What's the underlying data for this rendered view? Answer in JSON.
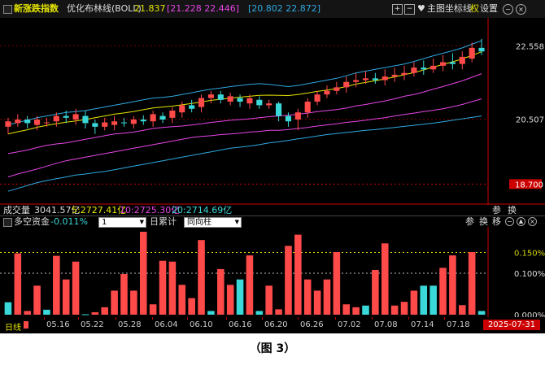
{
  "main_panel": {
    "title": "新涨跌指数",
    "indicator_name": "优化布林线(BOLL)",
    "mid_value": "21.837",
    "upper_pair": "[21.228 22.446]",
    "lower_pair": "[20.802 22.872]",
    "toolbar": {
      "chart_label": "主图",
      "axis_label": "坐标线",
      "rights_label": "权",
      "settings_label": "设置"
    },
    "y_labels": [
      "22.558",
      "20.507"
    ],
    "current_price": "18.700"
  },
  "volume_panel": {
    "label": "成交量",
    "total": "3041.57亿",
    "ma5": "5:2727.41亿",
    "ma10": "10:2725.30亿",
    "ma20": "20:2714.69亿",
    "params_label": "参",
    "switch_label": "换"
  },
  "long_short_panel": {
    "label": "多空资金",
    "value": "-0.011%",
    "select_value": "1",
    "cumulative_label": "日累计",
    "direction_select": "同向柱",
    "params_label": "参",
    "switch_label": "换",
    "move_label": "移",
    "y_labels": [
      "0.150%",
      "0.100%",
      "0.000%"
    ]
  },
  "date_axis": {
    "period_label": "日线",
    "dates": [
      "05.16",
      "05.22",
      "05.28",
      "06.04",
      "06.10",
      "06.16",
      "06.20",
      "06.26",
      "07.02",
      "07.08",
      "07.14",
      "07.18"
    ],
    "current_date": "2025-07-31"
  },
  "caption": "（图 3）",
  "colors": {
    "up": "#ff4a4a",
    "down": "#3ad8d8",
    "boll_mid": "#e6e600",
    "boll_upper": "#e645e6",
    "boll_lower": "#2fa8e0"
  },
  "chart_data": {
    "type": "bar",
    "title": "多空资金",
    "ylim": [
      0,
      0.2
    ],
    "values": [
      0.03,
      0.148,
      0.009,
      0.07,
      0.012,
      0.142,
      0.085,
      0.128,
      0.001,
      0.006,
      0.018,
      0.058,
      0.098,
      0.058,
      0.2,
      0.025,
      0.13,
      0.128,
      0.072,
      0.04,
      0.18,
      0.009,
      0.11,
      0.072,
      0.085,
      0.143,
      0.009,
      0.07,
      0.013,
      0.166,
      0.193,
      0.085,
      0.058,
      0.085,
      0.151,
      0.025,
      0.018,
      0.022,
      0.108,
      0.172,
      0.022,
      0.031,
      0.058,
      0.07,
      0.07,
      0.113,
      0.143,
      0.023,
      0.151,
      0.009
    ],
    "colors": [
      "down",
      "up",
      "up",
      "up",
      "down",
      "up",
      "up",
      "up",
      "down",
      "up",
      "up",
      "up",
      "up",
      "up",
      "up",
      "up",
      "up",
      "up",
      "up",
      "up",
      "up",
      "down",
      "up",
      "up",
      "down",
      "up",
      "down",
      "up",
      "up",
      "up",
      "up",
      "up",
      "up",
      "up",
      "up",
      "up",
      "up",
      "down",
      "up",
      "up",
      "up",
      "up",
      "up",
      "down",
      "down",
      "up",
      "up",
      "up",
      "up",
      "down"
    ],
    "reference_lines": [
      0.15,
      0.1
    ]
  },
  "price_chart": {
    "type": "candlestick",
    "ylim": [
      18.3,
      23.2
    ],
    "candles": [
      [
        20.3,
        20.45,
        20.1,
        20.55
      ],
      [
        20.4,
        20.5,
        20.3,
        20.65
      ],
      [
        20.5,
        20.4,
        20.25,
        20.6
      ],
      [
        20.35,
        20.5,
        20.2,
        20.6
      ],
      [
        20.4,
        20.42,
        20.3,
        20.55
      ],
      [
        20.45,
        20.6,
        20.3,
        20.7
      ],
      [
        20.6,
        20.55,
        20.4,
        20.75
      ],
      [
        20.5,
        20.65,
        20.35,
        20.8
      ],
      [
        20.6,
        20.4,
        20.25,
        20.75
      ],
      [
        20.4,
        20.3,
        20.1,
        20.5
      ],
      [
        20.3,
        20.42,
        20.2,
        20.55
      ],
      [
        20.35,
        20.45,
        20.2,
        20.6
      ],
      [
        20.42,
        20.4,
        20.3,
        20.55
      ],
      [
        20.38,
        20.5,
        20.25,
        20.6
      ],
      [
        20.5,
        20.45,
        20.35,
        20.62
      ],
      [
        20.45,
        20.65,
        20.3,
        20.75
      ],
      [
        20.6,
        20.5,
        20.4,
        20.7
      ],
      [
        20.55,
        20.75,
        20.4,
        20.85
      ],
      [
        20.7,
        20.9,
        20.55,
        21.0
      ],
      [
        20.9,
        20.8,
        20.7,
        21.05
      ],
      [
        20.85,
        21.1,
        20.7,
        21.2
      ],
      [
        21.1,
        21.2,
        20.95,
        21.3
      ],
      [
        21.2,
        21.05,
        20.95,
        21.3
      ],
      [
        21.0,
        21.15,
        20.9,
        21.25
      ],
      [
        21.1,
        21.0,
        20.85,
        21.2
      ],
      [
        20.95,
        21.1,
        20.8,
        21.2
      ],
      [
        21.05,
        20.9,
        20.8,
        21.15
      ],
      [
        20.9,
        20.95,
        20.8,
        21.05
      ],
      [
        20.95,
        20.6,
        20.45,
        21.0
      ],
      [
        20.6,
        20.45,
        20.3,
        20.7
      ],
      [
        20.5,
        20.7,
        20.2,
        20.8
      ],
      [
        20.7,
        21.0,
        20.55,
        21.1
      ],
      [
        21.0,
        21.2,
        20.9,
        21.3
      ],
      [
        21.2,
        21.3,
        21.1,
        21.45
      ],
      [
        21.3,
        21.4,
        21.2,
        21.55
      ],
      [
        21.4,
        21.55,
        21.25,
        21.7
      ],
      [
        21.55,
        21.6,
        21.4,
        21.8
      ],
      [
        21.6,
        21.65,
        21.5,
        21.85
      ],
      [
        21.65,
        21.6,
        21.5,
        21.8
      ],
      [
        21.6,
        21.7,
        21.45,
        21.9
      ],
      [
        21.7,
        21.75,
        21.55,
        21.95
      ],
      [
        21.75,
        21.8,
        21.6,
        22.0
      ],
      [
        21.8,
        21.95,
        21.7,
        22.1
      ],
      [
        21.95,
        21.9,
        21.75,
        22.15
      ],
      [
        21.9,
        22.0,
        21.8,
        22.2
      ],
      [
        22.0,
        22.1,
        21.85,
        22.3
      ],
      [
        22.1,
        22.05,
        21.9,
        22.35
      ],
      [
        22.05,
        22.25,
        21.9,
        22.4
      ],
      [
        22.2,
        22.5,
        22.1,
        22.65
      ],
      [
        22.5,
        22.4,
        22.3,
        22.75
      ]
    ],
    "boll_mid": [
      19.55,
      19.6,
      19.65,
      19.72,
      19.78,
      19.82,
      19.85,
      19.9,
      19.95,
      20.0,
      20.05,
      20.1,
      20.12,
      20.15,
      20.2,
      20.25,
      20.28,
      20.3,
      20.32,
      20.35,
      20.38,
      20.42,
      20.45,
      20.48,
      20.5,
      20.52,
      20.55,
      20.58,
      20.6,
      20.62,
      20.65,
      20.68,
      20.72,
      20.75,
      20.78,
      20.82,
      20.88,
      20.92,
      20.97,
      21.02,
      21.08,
      21.15,
      21.2,
      21.27,
      21.35,
      21.42,
      21.5,
      21.58,
      21.68,
      21.78
    ],
    "boll_upper": [
      20.35,
      20.42,
      20.48,
      20.55,
      20.6,
      20.65,
      20.7,
      20.72,
      20.75,
      20.8,
      20.85,
      20.9,
      20.95,
      21.0,
      21.05,
      21.1,
      21.12,
      21.15,
      21.2,
      21.25,
      21.3,
      21.35,
      21.38,
      21.42,
      21.45,
      21.48,
      21.5,
      21.48,
      21.45,
      21.42,
      21.45,
      21.5,
      21.55,
      21.6,
      21.65,
      21.72,
      21.8,
      21.85,
      21.9,
      21.95,
      22.0,
      22.05,
      22.12,
      22.2,
      22.28,
      22.35,
      22.42,
      22.5,
      22.6,
      22.7
    ],
    "boll_lower": [
      18.9,
      18.98,
      19.05,
      19.12,
      19.2,
      19.28,
      19.35,
      19.4,
      19.45,
      19.5,
      19.55,
      19.6,
      19.65,
      19.7,
      19.75,
      19.8,
      19.85,
      19.9,
      19.95,
      20.0,
      20.03,
      20.05,
      20.08,
      20.1,
      20.12,
      20.15,
      20.17,
      20.2,
      20.2,
      20.22,
      20.25,
      20.28,
      20.32,
      20.35,
      20.38,
      20.42,
      20.45,
      20.48,
      20.52,
      20.55,
      20.6,
      20.64,
      20.68,
      20.72,
      20.76,
      20.8,
      20.86,
      20.92,
      21.0,
      21.08
    ],
    "boll_far_lower": [
      18.5,
      18.58,
      18.66,
      18.74,
      18.8,
      18.85,
      18.9,
      18.95,
      18.98,
      19.02,
      19.05,
      19.1,
      19.15,
      19.2,
      19.25,
      19.3,
      19.35,
      19.4,
      19.45,
      19.5,
      19.55,
      19.6,
      19.65,
      19.7,
      19.73,
      19.76,
      19.8,
      19.85,
      19.88,
      19.92,
      19.96,
      20.0,
      20.04,
      20.08,
      20.11,
      20.14,
      20.17,
      20.2,
      20.22,
      20.25,
      20.28,
      20.31,
      20.34,
      20.37,
      20.4,
      20.44,
      20.48,
      20.52,
      20.56,
      20.6
    ]
  }
}
